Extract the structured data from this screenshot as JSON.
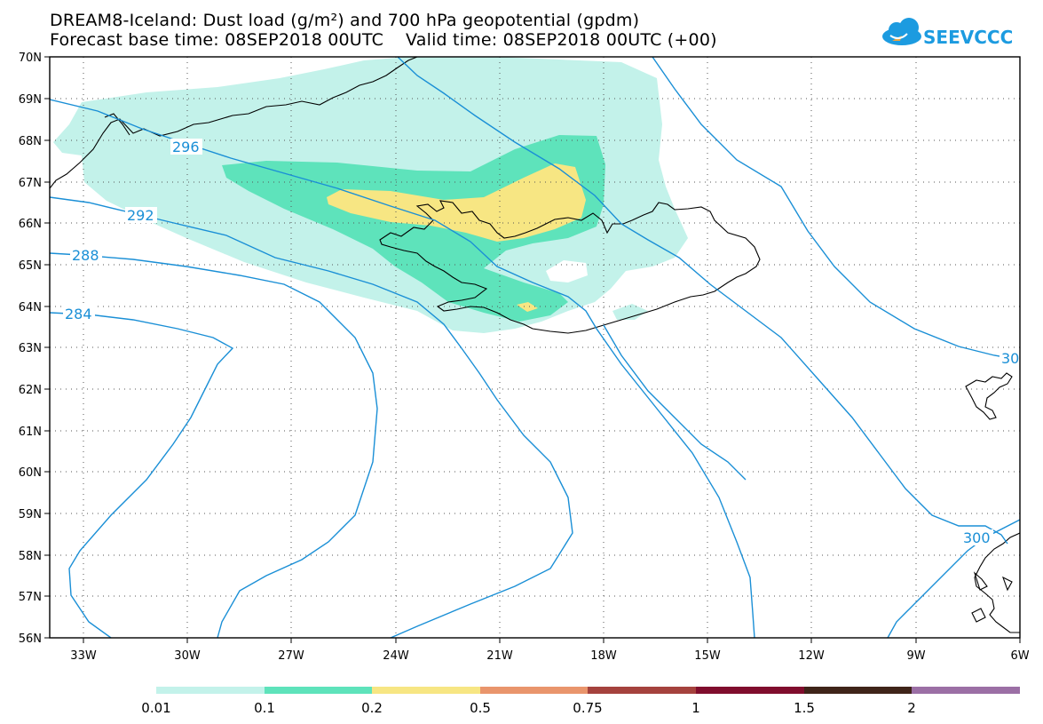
{
  "header": {
    "title_line1": "DREAM8-Iceland: Dust load (g/m²) and 700 hPa geopotential (gpdm)",
    "title_line2": "Forecast base time: 08SEP2018 00UTC    Valid time: 08SEP2018 00UTC (+00)"
  },
  "logo": {
    "text": "SEEVCCC",
    "color": "#1c9be0"
  },
  "map": {
    "lon_range": [
      -34.5,
      -6
    ],
    "lat_range": [
      56,
      70
    ],
    "lon_labels": [
      "33W",
      "30W",
      "27W",
      "24W",
      "21W",
      "18W",
      "15W",
      "12W",
      "9W",
      "6W"
    ],
    "lat_labels": [
      "56N",
      "57N",
      "58N",
      "59N",
      "60N",
      "61N",
      "62N",
      "63N",
      "64N",
      "65N",
      "66N",
      "67N",
      "68N",
      "69N",
      "70N"
    ],
    "grid": "dotted",
    "contour_color": "#1a8fd6",
    "contour_labels": [
      "296",
      "292",
      "288",
      "284",
      "300",
      "30"
    ]
  },
  "colorbar": {
    "colors": [
      "#c3f2ea",
      "#5ee3bb",
      "#f7e683",
      "#e9956c",
      "#a5423d",
      "#800d2d",
      "#3f2419",
      "#9b6fa5"
    ],
    "tick_labels": [
      "0.01",
      "0.1",
      "0.2",
      "0.5",
      "0.75",
      "1",
      "1.5",
      "2"
    ]
  }
}
